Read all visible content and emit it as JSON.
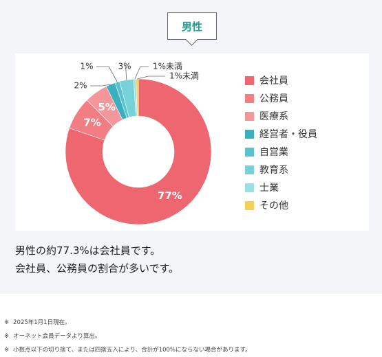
{
  "header": {
    "tag_label": "男性"
  },
  "chart_data": {
    "type": "pie",
    "donut": true,
    "title": "",
    "slices": [
      {
        "name": "会社員",
        "value": 77.3,
        "label": "77%",
        "color": "#ee6770"
      },
      {
        "name": "公務員",
        "value": 7,
        "label": "7%",
        "color": "#f27e84"
      },
      {
        "name": "医療系",
        "value": 5,
        "label": "5%",
        "color": "#f4969a"
      },
      {
        "name": "経営者・役員",
        "value": 2,
        "label": "2%",
        "color": "#3bb0bd"
      },
      {
        "name": "自営業",
        "value": 1,
        "label": "1%",
        "color": "#58c3cf"
      },
      {
        "name": "教育系",
        "value": 3,
        "label": "3%",
        "color": "#77d1d9"
      },
      {
        "name": "士業",
        "value": 0.5,
        "label": "1%未満",
        "color": "#9adfe3"
      },
      {
        "name": "その他",
        "value": 0.5,
        "label": "1%未満",
        "color": "#f6cf55"
      }
    ],
    "legend_position": "right"
  },
  "legend": [
    {
      "label": "会社員",
      "color": "#ee6770"
    },
    {
      "label": "公務員",
      "color": "#f27e84"
    },
    {
      "label": "医療系",
      "color": "#f4969a"
    },
    {
      "label": "経営者・役員",
      "color": "#3bb0bd"
    },
    {
      "label": "自営業",
      "color": "#58c3cf"
    },
    {
      "label": "教育系",
      "color": "#77d1d9"
    },
    {
      "label": "士業",
      "color": "#9adfe3"
    },
    {
      "label": "その他",
      "color": "#f6cf55"
    }
  ],
  "description": {
    "line1": "男性の約77.3%は会社員です。",
    "line2": "会社員、公務員の割合が多いです。"
  },
  "notes": [
    {
      "mark": "※",
      "text": "2025年1月1日現在。"
    },
    {
      "mark": "※",
      "text": "オーネット会員データより算出。"
    },
    {
      "mark": "※",
      "text": "小数点以下の切り捨て、または四捨五入により、合計が100%にならない場合があります。"
    }
  ]
}
